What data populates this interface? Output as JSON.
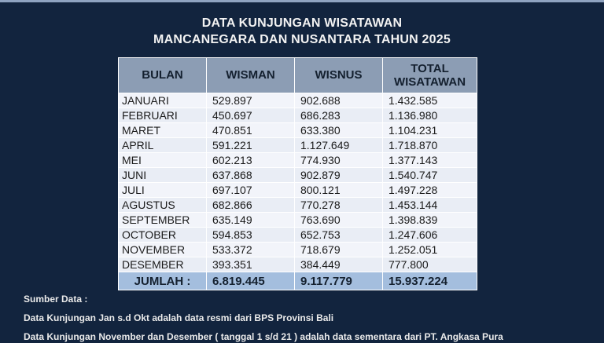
{
  "title": {
    "line1": "DATA KUNJUNGAN WISATAWAN",
    "line2": "MANCANEGARA DAN NUSANTARA TAHUN 2025"
  },
  "table": {
    "headers": [
      "BULAN",
      "WISMAN",
      "WISNUS",
      "TOTAL WISATAWAN"
    ],
    "rows": [
      {
        "bulan": "JANUARI",
        "wisman": "529.897",
        "wisnus": "902.688",
        "total": "1.432.585"
      },
      {
        "bulan": "FEBRUARI",
        "wisman": "450.697",
        "wisnus": "686.283",
        "total": "1.136.980"
      },
      {
        "bulan": "MARET",
        "wisman": "470.851",
        "wisnus": "633.380",
        "total": "1.104.231"
      },
      {
        "bulan": "APRIL",
        "wisman": "591.221",
        "wisnus": "1.127.649",
        "total": "1.718.870"
      },
      {
        "bulan": "MEI",
        "wisman": "602.213",
        "wisnus": "774.930",
        "total": "1.377.143"
      },
      {
        "bulan": "JUNI",
        "wisman": "637.868",
        "wisnus": "902.879",
        "total": "1.540.747"
      },
      {
        "bulan": "JULI",
        "wisman": "697.107",
        "wisnus": "800.121",
        "total": "1.497.228"
      },
      {
        "bulan": "AGUSTUS",
        "wisman": "682.866",
        "wisnus": "770.278",
        "total": "1.453.144"
      },
      {
        "bulan": "SEPTEMBER",
        "wisman": "635.149",
        "wisnus": "763.690",
        "total": "1.398.839"
      },
      {
        "bulan": "OCTOBER",
        "wisman": "594.853",
        "wisnus": "652.753",
        "total": "1.247.606"
      },
      {
        "bulan": "NOVEMBER",
        "wisman": "533.372",
        "wisnus": "718.679",
        "total": "1.252.051"
      },
      {
        "bulan": "DESEMBER",
        "wisman": "393.351",
        "wisnus": "384.449",
        "total": "777.800"
      }
    ],
    "footer": {
      "label": "JUMLAH :",
      "wisman": "6.819.445",
      "wisnus": "9.117.779",
      "total": "15.937.224"
    }
  },
  "notes": {
    "heading": "Sumber Data :",
    "line1": "Data Kunjungan Jan s.d Okt adalah data resmi dari BPS Provinsi Bali",
    "line2": "Data Kunjungan November dan Desember ( tanggal 1 s/d 21 )  adalah data sementara dari PT. Angkasa Pura"
  },
  "colors": {
    "background": "#12243E",
    "top_border": "#8FA3C0",
    "header_bg": "#8C9DB4",
    "row_odd": "#F2F4FA",
    "row_even": "#E9EDF5",
    "total_row_bg": "#A4BEDE",
    "table_text": "#1A1A1A",
    "light_text": "#F2F2F2"
  }
}
